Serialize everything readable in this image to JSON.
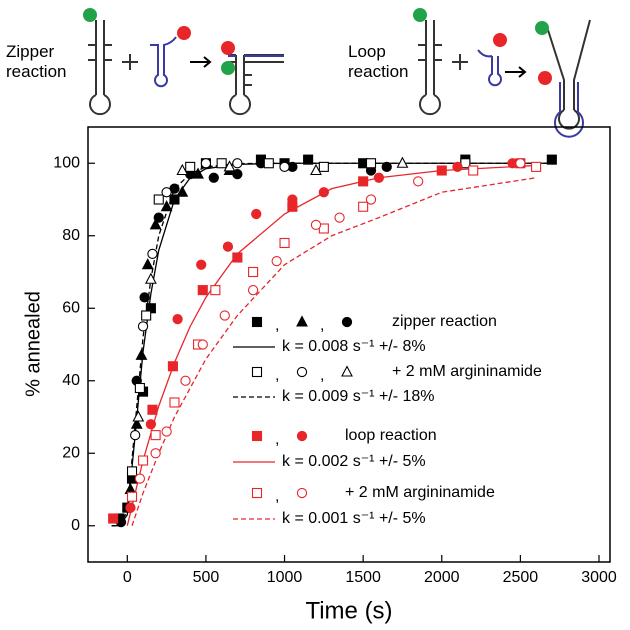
{
  "chart_data": {
    "type": "scatter",
    "annotations": [
      "Zipper reaction",
      "Loop reaction"
    ],
    "xlabel": "Time (s)",
    "ylabel": "% annealed",
    "xlim": [
      -250,
      3070
    ],
    "ylim": [
      -10,
      110
    ],
    "xticks": [
      0,
      500,
      1000,
      1500,
      2000,
      2500,
      3000
    ],
    "yticks": [
      0,
      20,
      40,
      60,
      80,
      100
    ],
    "legend_separator": ",",
    "series": [
      {
        "name": "zipper reaction",
        "color": "#000000",
        "filled": true,
        "points": [
          {
            "marker": "square",
            "x": [
              -50,
              0,
              30,
              100,
              150,
              300,
              500,
              850,
              1000,
              1150,
              1500,
              2150,
              2700
            ],
            "y": [
              2,
              5,
              13,
              37,
              60,
              90,
              100,
              101,
              100,
              101,
              100,
              101,
              101
            ]
          },
          {
            "marker": "triangle",
            "x": [
              20,
              60,
              90,
              130,
              180,
              250,
              350,
              450,
              650
            ],
            "y": [
              10,
              28,
              47,
              72,
              83,
              88,
              92,
              97,
              98
            ]
          },
          {
            "marker": "circle",
            "x": [
              -40,
              10,
              60,
              110,
              200,
              300,
              400,
              550,
              700,
              850,
              1050,
              1550,
              1650
            ],
            "y": [
              1,
              5,
              40,
              63,
              85,
              93,
              97,
              96,
              97,
              100,
              99,
              98,
              99
            ]
          }
        ],
        "fit": {
          "name": "k = 0.008 s⁻¹ +/- 8%",
          "dash": false,
          "x": [
            -100,
            -50,
            0,
            50,
            100,
            150,
            200,
            300,
            400,
            500,
            700,
            1000,
            1500,
            2000,
            2700
          ],
          "y": [
            0,
            0,
            3,
            25,
            48,
            64,
            76,
            90,
            96,
            98.5,
            99.7,
            100,
            100,
            100,
            100
          ]
        }
      },
      {
        "name": "+ 2 mM argininamide",
        "color": "#000000",
        "filled": false,
        "points": [
          {
            "marker": "square",
            "x": [
              30,
              80,
              120,
              200,
              400,
              600,
              900,
              1250,
              1550,
              2150
            ],
            "y": [
              15,
              38,
              58,
              90,
              99,
              100,
              100,
              99,
              100,
              100
            ]
          },
          {
            "marker": "circle",
            "x": [
              50,
              100,
              160,
              250,
              500,
              700,
              1000
            ],
            "y": [
              25,
              55,
              75,
              92,
              100,
              100,
              99
            ]
          },
          {
            "marker": "triangle",
            "x": [
              70,
              150,
              350,
              650,
              1200,
              1750
            ],
            "y": [
              30,
              68,
              98,
              99,
              98,
              100
            ]
          }
        ],
        "fit": {
          "name": "k = 0.009 s⁻¹ +/- 18%",
          "dash": true,
          "x": [
            -100,
            -50,
            0,
            50,
            100,
            150,
            200,
            300,
            400,
            500,
            700,
            1000,
            1500,
            2000,
            2700
          ],
          "y": [
            0,
            0,
            4,
            28,
            52,
            68,
            80,
            93,
            97,
            99,
            99.9,
            100,
            100,
            100,
            100
          ]
        }
      },
      {
        "name": "loop reaction",
        "color": "#e8262a",
        "filled": true,
        "points": [
          {
            "marker": "square",
            "x": [
              -90,
              160,
              290,
              480,
              700,
              1050,
              1500,
              2000,
              2500
            ],
            "y": [
              2,
              32,
              44,
              65,
              74,
              88,
              95,
              98,
              100
            ]
          },
          {
            "marker": "circle",
            "x": [
              20,
              150,
              320,
              470,
              640,
              820,
              1050,
              1250,
              1600,
              2100,
              2450
            ],
            "y": [
              5,
              28,
              57,
              72,
              77,
              86,
              90,
              92,
              96,
              99,
              100
            ]
          }
        ],
        "fit": {
          "name": "k = 0.002 s⁻¹ +/- 5%",
          "dash": false,
          "x": [
            0,
            100,
            200,
            300,
            400,
            500,
            700,
            1000,
            1300,
            1600,
            2000,
            2600
          ],
          "y": [
            0,
            18,
            33,
            45,
            55,
            63,
            75,
            86,
            93,
            96,
            98,
            99.4
          ]
        }
      },
      {
        "name": "+ 2 mM argininamide",
        "color": "#e8262a",
        "filled": false,
        "points": [
          {
            "marker": "square",
            "x": [
              30,
              100,
              180,
              300,
              450,
              560,
              800,
              1000,
              1250,
              1500,
              2200,
              2600
            ],
            "y": [
              8,
              18,
              25,
              34,
              50,
              65,
              70,
              78,
              82,
              88,
              98,
              99
            ]
          },
          {
            "marker": "circle",
            "x": [
              80,
              180,
              250,
              370,
              480,
              620,
              800,
              950,
              1200,
              1350,
              1550,
              1850,
              2500
            ],
            "y": [
              13,
              20,
              26,
              40,
              50,
              58,
              65,
              73,
              83,
              85,
              90,
              95,
              100
            ]
          }
        ],
        "fit": {
          "name": "k = 0.001 s⁻¹ +/- 5%",
          "dash": true,
          "x": [
            30,
            100,
            200,
            300,
            400,
            500,
            700,
            1000,
            1300,
            1600,
            2000,
            2600
          ],
          "y": [
            0,
            9,
            20,
            30,
            38,
            46,
            58,
            72,
            80,
            85,
            92,
            96
          ]
        }
      }
    ]
  }
}
